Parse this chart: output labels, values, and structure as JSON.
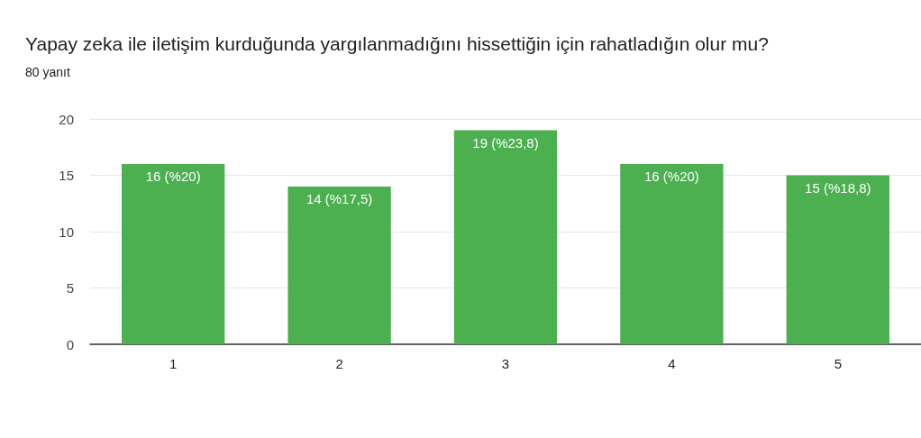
{
  "chart_data": {
    "type": "bar",
    "title": "Yapay zeka ile iletişim kurduğunda yargılanmadığını hissettiğin için rahatladığın olur mu?",
    "subtitle": "80 yanıt",
    "categories": [
      "1",
      "2",
      "3",
      "4",
      "5"
    ],
    "values": [
      16,
      14,
      19,
      16,
      15
    ],
    "value_labels": [
      "16 (%20)",
      "14 (%17,5)",
      "19 (%23,8)",
      "16 (%20)",
      "15 (%18,8)"
    ],
    "color": "#4caf50",
    "ylim": [
      0,
      20
    ],
    "yticks": [
      0,
      5,
      10,
      15,
      20
    ],
    "grid": "y"
  }
}
